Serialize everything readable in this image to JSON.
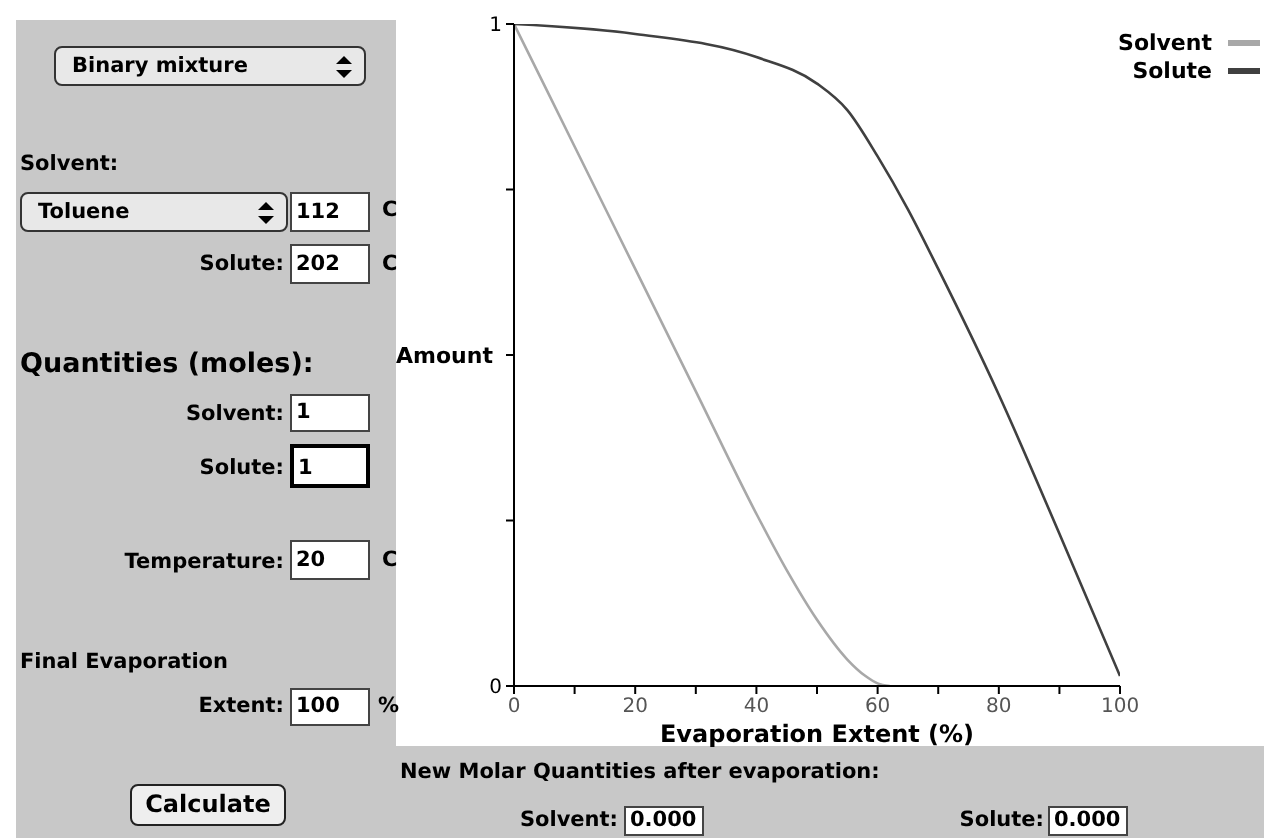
{
  "chart_data": {
    "type": "line",
    "xlabel": "Evaporation Extent (%)",
    "ylabel": "Amount",
    "xlim": [
      0,
      100
    ],
    "ylim": [
      0,
      1
    ],
    "xticks": [
      0,
      {
        "value": 10,
        "label": null
      },
      20,
      {
        "value": 30,
        "label": null
      },
      40,
      {
        "value": 50,
        "label": null
      },
      60,
      {
        "value": 70,
        "label": null
      },
      80,
      {
        "value": 90,
        "label": null
      },
      100
    ],
    "yticks": [
      0,
      {
        "value": 0.25,
        "label": null
      },
      {
        "value": 0.5,
        "label": null
      },
      {
        "value": 0.75,
        "label": null
      },
      1
    ],
    "grid": false,
    "legend": "top right",
    "marker": "none",
    "line_style": "solid",
    "series": [
      {
        "name": "Solvent",
        "color": "#a8a8a8",
        "x": [
          0,
          10,
          20,
          30,
          40,
          45,
          50,
          55,
          58,
          60,
          62
        ],
        "values": [
          1,
          0.815,
          0.63,
          0.445,
          0.26,
          0.175,
          0.1,
          0.04,
          0.015,
          0.004,
          0
        ]
      },
      {
        "name": "Solute",
        "color": "#404040",
        "x": [
          0,
          20,
          40,
          50,
          55,
          60,
          65,
          70,
          80,
          90,
          100
        ],
        "values": [
          1,
          0.985,
          0.95,
          0.91,
          0.87,
          0.8,
          0.72,
          0.63,
          0.44,
          0.23,
          0.015
        ]
      }
    ],
    "annotations": [
      "Binary mixture",
      "Solvent:",
      "Toluene",
      "112",
      "C",
      "Solute:",
      "202",
      "C",
      "Quantities (moles):",
      "Solvent:",
      "1",
      "Solute:",
      "1",
      "Temperature:",
      "20",
      "C",
      "Final Evaporation",
      "Extent:",
      "100",
      "%",
      "Calculate",
      "New Molar Quantities after evaporation:",
      "Solvent:",
      "0.000",
      "Solute:",
      "0.000"
    ]
  }
}
